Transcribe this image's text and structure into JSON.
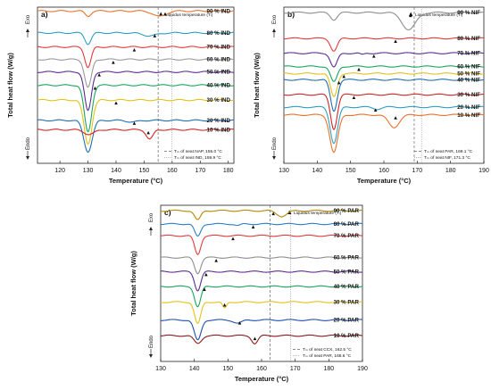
{
  "chart_data": [
    {
      "type": "line",
      "panel_label": "a)",
      "xlabel": "Temperature (°C)",
      "ylabel": "Total heat flow (W/g)",
      "exo_label": "Exo",
      "endo_label": "Endo",
      "xlim": [
        112,
        182
      ],
      "xticks": [
        120,
        130,
        140,
        150,
        160,
        170,
        180
      ],
      "grid": false,
      "legend_position": "bottom-right",
      "marker_legend": "Liquidus temperature (Tₗ)",
      "reference_lines": [
        {
          "label": "Tₘ of neat NAP, 155.0 °C",
          "x": 155.0,
          "style": "dashed"
        },
        {
          "label": "Tₘ of neat IND, 159.9 °C",
          "x": 159.9,
          "style": "dotted"
        }
      ],
      "series": [
        {
          "name": "90 %  IND",
          "color": "#e8722c",
          "baseline": 0.975,
          "peaks": [
            {
              "x": 130,
              "depth": 0.032,
              "width": 1.0
            },
            {
              "x": 155.5,
              "depth": 0.035,
              "width": 2.2
            }
          ],
          "liquidus_x": 157.5
        },
        {
          "name": "80 %  IND",
          "color": "#2e9fc3",
          "baseline": 0.835,
          "peaks": [
            {
              "x": 130,
              "depth": 0.07,
              "width": 1.1
            },
            {
              "x": 152,
              "depth": 0.018,
              "width": 2.5
            }
          ],
          "liquidus_x": 153.8
        },
        {
          "name": "70 %  IND",
          "color": "#e23a3a",
          "baseline": 0.745,
          "peaks": [
            {
              "x": 130,
              "depth": 0.13,
              "width": 1.1
            }
          ],
          "liquidus_x": 146.5
        },
        {
          "name": "60 %  IND",
          "color": "#9a9a9a",
          "baseline": 0.665,
          "peaks": [
            {
              "x": 130,
              "depth": 0.18,
              "width": 1.2
            }
          ],
          "liquidus_x": 139.0
        },
        {
          "name": "50 %  IND",
          "color": "#5b2c92",
          "baseline": 0.585,
          "peaks": [
            {
              "x": 130,
              "depth": 0.25,
              "width": 1.2
            }
          ],
          "liquidus_x": 134.0
        },
        {
          "name": "40 %  IND",
          "color": "#1aa55f",
          "baseline": 0.5,
          "peaks": [
            {
              "x": 130,
              "depth": 0.3,
              "width": 1.3
            }
          ],
          "liquidus_x": 132.5
        },
        {
          "name": "30 %  IND",
          "color": "#e2c21a",
          "baseline": 0.405,
          "peaks": [
            {
              "x": 130,
              "depth": 0.28,
              "width": 1.4
            }
          ],
          "liquidus_x": 140.0
        },
        {
          "name": "20 %  IND",
          "color": "#1f6fb2",
          "baseline": 0.275,
          "peaks": [
            {
              "x": 130,
              "depth": 0.2,
              "width": 1.5
            },
            {
              "x": 146,
              "depth": 0.01,
              "width": 2.0
            }
          ],
          "liquidus_x": 146.5
        },
        {
          "name": "10 %  IND",
          "color": "#d42424",
          "baseline": 0.215,
          "peaks": [
            {
              "x": 130.5,
              "depth": 0.03,
              "width": 1.8
            },
            {
              "x": 152,
              "depth": 0.06,
              "width": 1.2
            }
          ],
          "liquidus_x": 151.5
        }
      ]
    },
    {
      "type": "line",
      "panel_label": "b)",
      "xlabel": "Temperature (°C)",
      "ylabel": "Total heat flow (W/g)",
      "exo_label": "Exo",
      "endo_label": "Endo",
      "xlim": [
        130,
        190
      ],
      "xticks": [
        130,
        140,
        150,
        160,
        170,
        180,
        190
      ],
      "grid": false,
      "legend_position": "bottom-right",
      "marker_legend": "Liquidus temperature (Tₗ)",
      "reference_lines": [
        {
          "label": "Tₘ of neat PAR, 169.1 °C",
          "x": 169.1,
          "style": "dashed"
        },
        {
          "label": "Tₘ of neat NIF, 171.3 °C",
          "x": 171.3,
          "style": "dotted"
        }
      ],
      "series": [
        {
          "name": "90 %  NIF",
          "color": "#8e8e8e",
          "baseline": 0.965,
          "peaks": [
            {
              "x": 145,
              "depth": 0.045,
              "width": 1.0
            },
            {
              "x": 167.5,
              "depth": 0.11,
              "width": 2.0
            }
          ],
          "liquidus_x": 168.0
        },
        {
          "name": "80 %  NIF",
          "color": "#e23a3a",
          "baseline": 0.8,
          "peaks": [
            {
              "x": 145,
              "depth": 0.08,
              "width": 1.0
            }
          ],
          "liquidus_x": 163.5
        },
        {
          "name": "70 %  NIF",
          "color": "#5b2c92",
          "baseline": 0.705,
          "peaks": [
            {
              "x": 145,
              "depth": 0.09,
              "width": 1.0
            },
            {
              "x": 153.5,
              "depth": 0.01,
              "width": 0.6
            }
          ],
          "liquidus_x": 157.0
        },
        {
          "name": "60 %  NIF",
          "color": "#1aa55f",
          "baseline": 0.62,
          "peaks": [
            {
              "x": 145,
              "depth": 0.1,
              "width": 1.0
            }
          ],
          "liquidus_x": 152.5
        },
        {
          "name": "50 %  NIF",
          "color": "#e2c21a",
          "baseline": 0.575,
          "peaks": [
            {
              "x": 145,
              "depth": 0.15,
              "width": 1.0
            }
          ],
          "liquidus_x": 148.0
        },
        {
          "name": "40 %  NIF",
          "color": "#1f6fb2",
          "baseline": 0.535,
          "peaks": [
            {
              "x": 145,
              "depth": 0.2,
              "width": 1.0
            }
          ],
          "liquidus_x": 146.5
        },
        {
          "name": "30 %  NIF",
          "color": "#d42424",
          "baseline": 0.44,
          "peaks": [
            {
              "x": 145,
              "depth": 0.22,
              "width": 1.0
            }
          ],
          "liquidus_x": 151.0
        },
        {
          "name": "20 %  NIF",
          "color": "#2e9fc3",
          "baseline": 0.36,
          "peaks": [
            {
              "x": 145,
              "depth": 0.23,
              "width": 1.1
            },
            {
              "x": 158,
              "depth": 0.012,
              "width": 1.2
            }
          ],
          "liquidus_x": 157.5
        },
        {
          "name": "10 %  NIF",
          "color": "#e8722c",
          "baseline": 0.31,
          "peaks": [
            {
              "x": 145,
              "depth": 0.24,
              "width": 1.2
            },
            {
              "x": 163,
              "depth": 0.08,
              "width": 1.6
            }
          ],
          "liquidus_x": 163.5
        }
      ]
    },
    {
      "type": "line",
      "panel_label": "c)",
      "xlabel": "Temperature (°C)",
      "ylabel": "Total heat flow (W/g)",
      "exo_label": "Exo",
      "endo_label": "Endo",
      "xlim": [
        130,
        190
      ],
      "xticks": [
        130,
        140,
        150,
        160,
        170,
        180,
        190
      ],
      "grid": false,
      "legend_position": "bottom-right",
      "marker_legend": "Liquidus temperature (Tₗ)",
      "reference_lines": [
        {
          "label": "Tₘ of neat CCX, 162.5 °C",
          "x": 162.5,
          "style": "dashed"
        },
        {
          "label": "Tₘ of neat PAR, 168.6 °C",
          "x": 168.6,
          "style": "dotted"
        }
      ],
      "series": [
        {
          "name": "90 %  PAR",
          "color": "#b58a00",
          "baseline": 0.965,
          "peaks": [
            {
              "x": 141,
              "depth": 0.06,
              "width": 0.9
            },
            {
              "x": 166,
              "depth": 0.035,
              "width": 1.5
            }
          ],
          "liquidus_x": 163.5
        },
        {
          "name": "80 %  PAR",
          "color": "#2e7fc3",
          "baseline": 0.88,
          "peaks": [
            {
              "x": 141,
              "depth": 0.08,
              "width": 0.9
            },
            {
              "x": 153,
              "depth": 0.01,
              "width": 0.8
            }
          ],
          "liquidus_x": 157.5
        },
        {
          "name": "70 %  PAR",
          "color": "#e23a3a",
          "baseline": 0.805,
          "peaks": [
            {
              "x": 141,
              "depth": 0.12,
              "width": 0.9
            }
          ],
          "liquidus_x": 151.5
        },
        {
          "name": "60 %  PAR",
          "color": "#8e8e8e",
          "baseline": 0.665,
          "peaks": [
            {
              "x": 141,
              "depth": 0.1,
              "width": 0.9
            }
          ],
          "liquidus_x": 146.5
        },
        {
          "name": "50 %  PAR",
          "color": "#5b2c92",
          "baseline": 0.575,
          "peaks": [
            {
              "x": 141,
              "depth": 0.12,
              "width": 0.9
            }
          ],
          "liquidus_x": 143.5
        },
        {
          "name": "40 %  PAR",
          "color": "#1aa55f",
          "baseline": 0.48,
          "peaks": [
            {
              "x": 141,
              "depth": 0.13,
              "width": 0.9
            }
          ],
          "liquidus_x": 143.0
        },
        {
          "name": "30 %  PAR",
          "color": "#e2c21a",
          "baseline": 0.38,
          "peaks": [
            {
              "x": 141,
              "depth": 0.14,
              "width": 0.9
            },
            {
              "x": 149,
              "depth": 0.04,
              "width": 0.6
            }
          ],
          "liquidus_x": 149.0
        },
        {
          "name": "20 %  PAR",
          "color": "#1f4fb2",
          "baseline": 0.265,
          "peaks": [
            {
              "x": 141,
              "depth": 0.13,
              "width": 1.0
            },
            {
              "x": 153,
              "depth": 0.02,
              "width": 1.2
            }
          ],
          "liquidus_x": 153.5
        },
        {
          "name": "10 %  PAR",
          "color": "#8b1a1a",
          "baseline": 0.165,
          "peaks": [
            {
              "x": 141,
              "depth": 0.05,
              "width": 1.1
            },
            {
              "x": 158,
              "depth": 0.05,
              "width": 0.9
            }
          ],
          "liquidus_x": 158.0
        }
      ]
    }
  ]
}
